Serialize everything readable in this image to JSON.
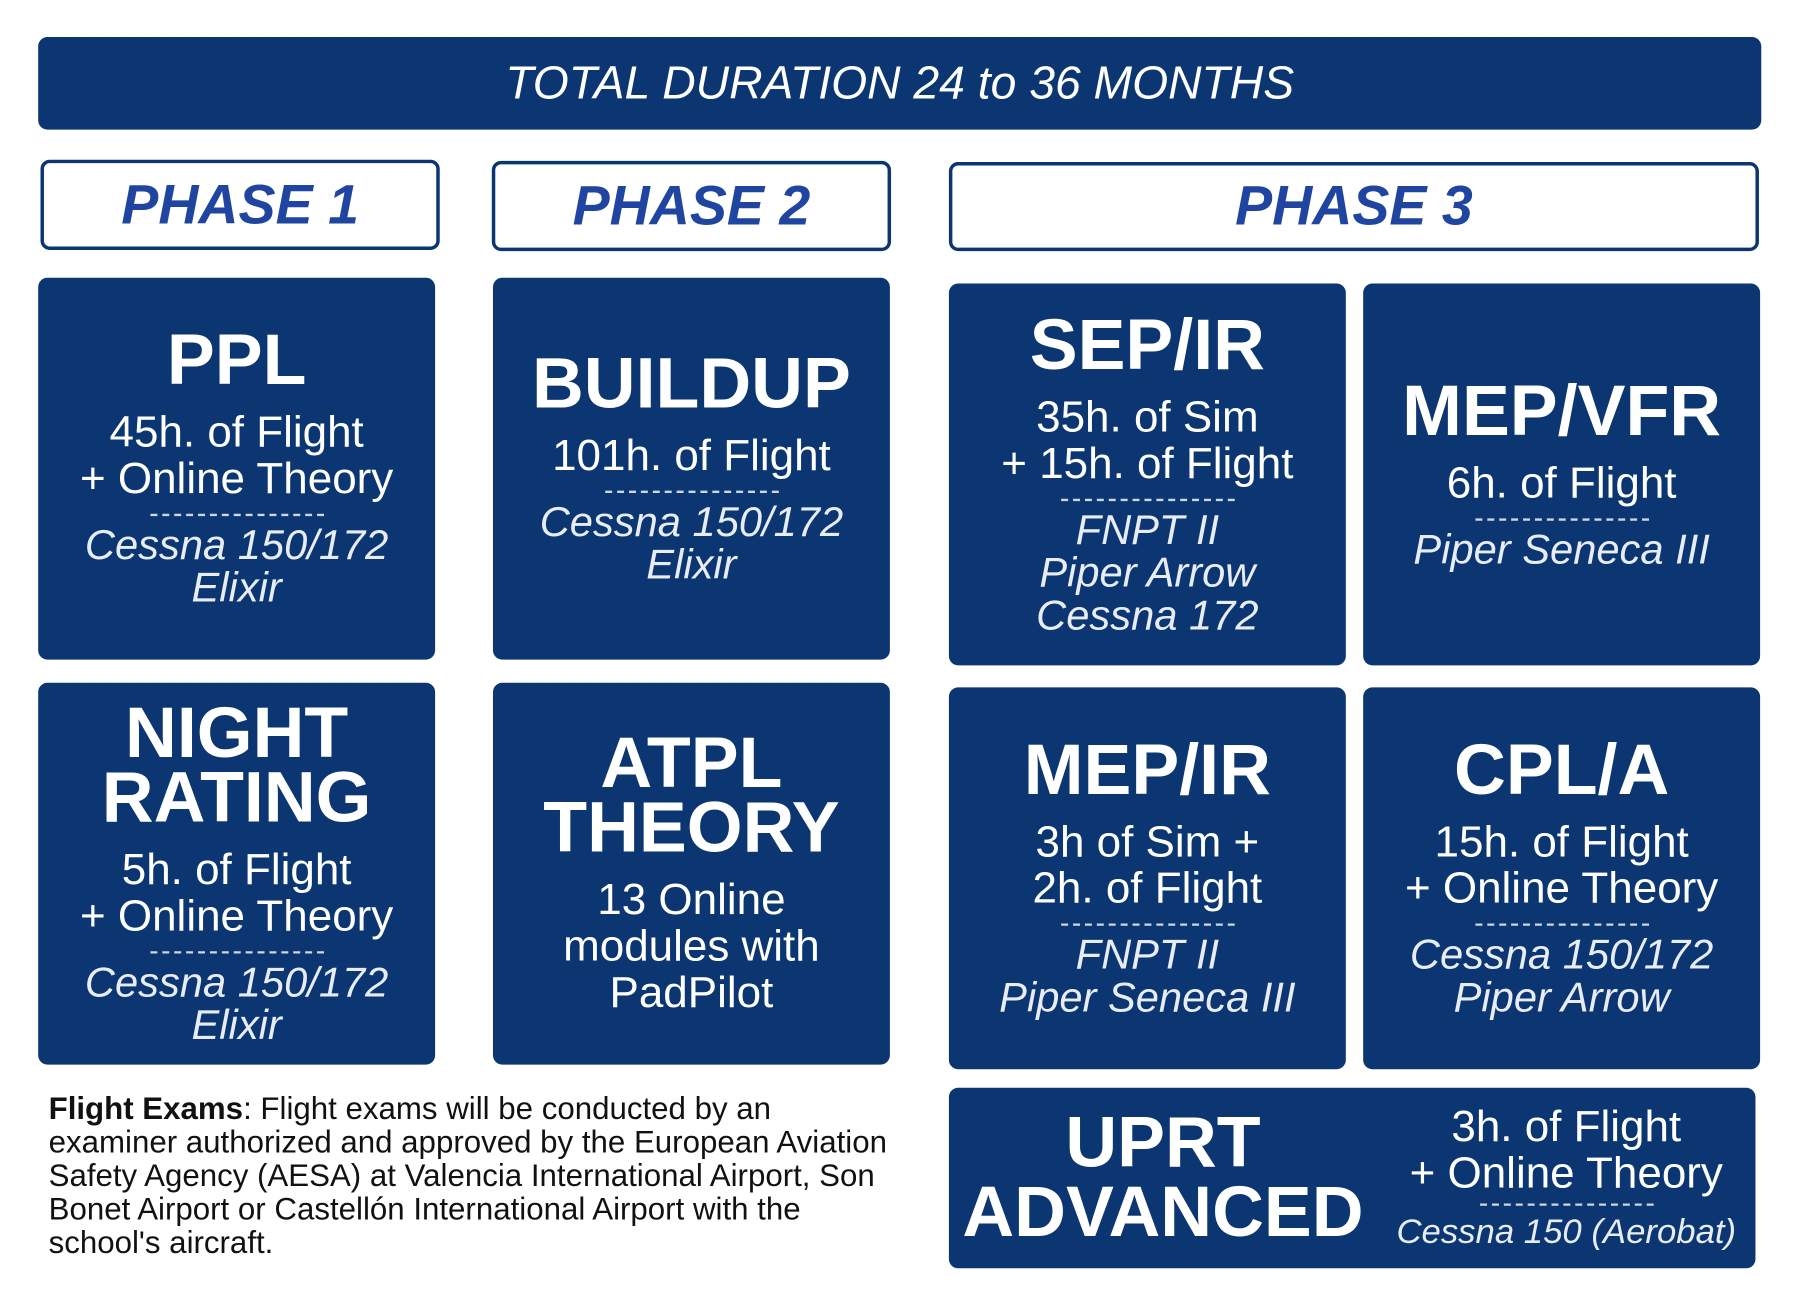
{
  "header": {
    "title": "TOTAL DURATION 24 to 36 MONTHS"
  },
  "phases": [
    "PHASE 1",
    "PHASE 2",
    "PHASE 3"
  ],
  "cards": [
    {
      "title": [
        "PPL"
      ],
      "lines": [
        "45h. of Flight",
        "+ Online Theory"
      ],
      "aircraft": [
        "Cessna 150/172",
        "Elixir"
      ]
    },
    {
      "title": [
        "BUILDUP"
      ],
      "lines": [
        "101h. of Flight"
      ],
      "aircraft": [
        "Cessna 150/172",
        "Elixir"
      ]
    },
    {
      "title": [
        "SEP/IR"
      ],
      "lines": [
        "35h. of Sim",
        "+ 15h. of Flight"
      ],
      "aircraft": [
        "FNPT II",
        "Piper Arrow",
        "Cessna 172"
      ]
    },
    {
      "title": [
        "MEP/VFR"
      ],
      "lines": [
        "6h. of Flight"
      ],
      "aircraft": [
        "Piper Seneca III"
      ]
    },
    {
      "title": [
        "NIGHT",
        "RATING"
      ],
      "lines": [
        "5h. of Flight",
        "+ Online Theory"
      ],
      "aircraft": [
        "Cessna 150/172",
        "Elixir"
      ]
    },
    {
      "title": [
        "ATPL",
        "THEORY"
      ],
      "lines": [
        "13 Online",
        "modules with",
        "PadPilot"
      ],
      "aircraft": []
    },
    {
      "title": [
        "MEP/IR"
      ],
      "lines": [
        "3h of Sim +",
        "2h. of Flight"
      ],
      "aircraft": [
        "FNPT II",
        "Piper Seneca III"
      ]
    },
    {
      "title": [
        "CPL/A"
      ],
      "lines": [
        "15h. of Flight",
        "+ Online Theory"
      ],
      "aircraft": [
        "Cessna 150/172",
        "Piper Arrow"
      ]
    },
    {
      "title": [
        "UPRT",
        "ADVANCED"
      ],
      "lines": [
        "3h. of Flight",
        "+ Online Theory"
      ],
      "aircraft": [
        "Cessna 150 (Aerobat)"
      ]
    }
  ],
  "footnote": {
    "bold": "Flight Exams",
    "text": ": Flight exams will be conducted by an examiner authorized and approved by the European Aviation Safety Agency (AESA) at Valencia International Airport, Son Bonet Airport or Castellón International Airport with the school's aircraft."
  }
}
